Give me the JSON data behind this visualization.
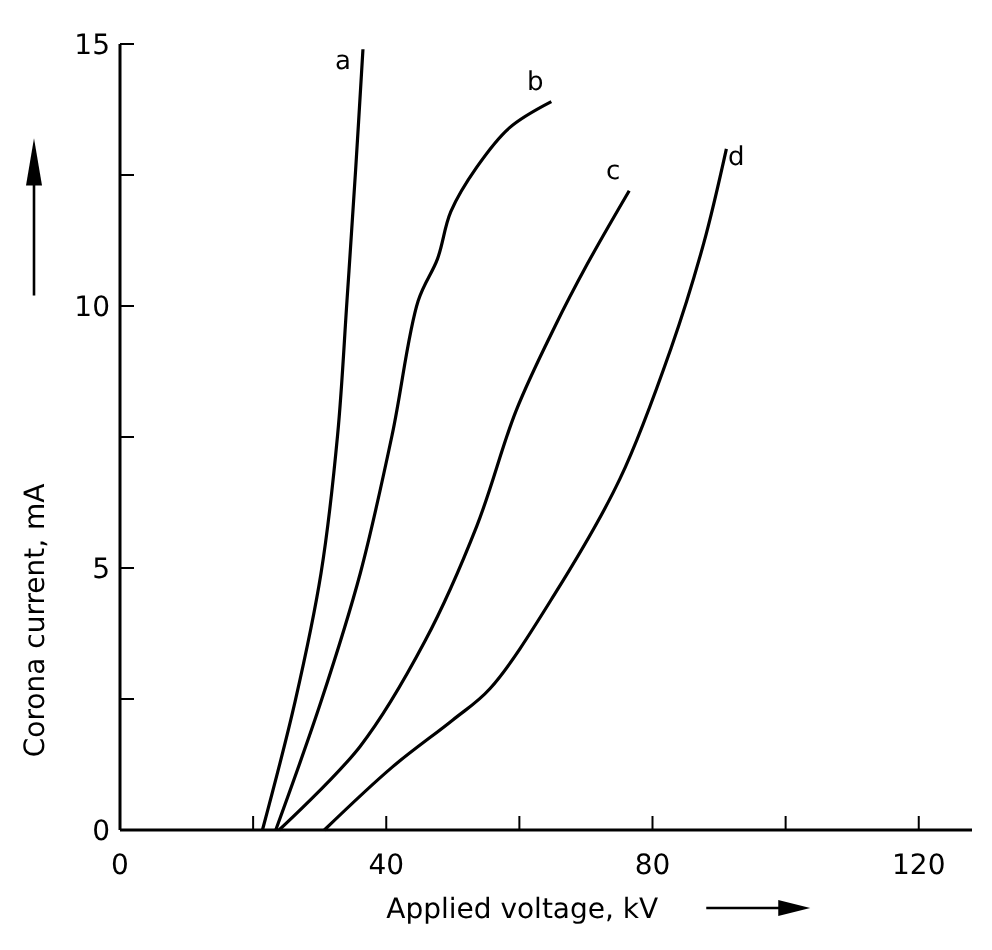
{
  "chart_data": {
    "type": "line",
    "xlabel": "Applied voltage, kV",
    "ylabel": "Corona current, mA",
    "xlim": [
      0,
      128
    ],
    "ylim": [
      0,
      15
    ],
    "xticks": [
      0,
      {
        "value": 20,
        "label": null
      },
      40,
      {
        "value": 60,
        "label": null
      },
      80,
      {
        "value": 100,
        "label": null
      },
      120
    ],
    "yticks": [
      0,
      {
        "value": 2.5,
        "label": null
      },
      5,
      {
        "value": 7.5,
        "label": null
      },
      10,
      {
        "value": 12.5,
        "label": null
      },
      15
    ],
    "grid": false,
    "marker": "none",
    "line_style": "solid",
    "series": [
      {
        "name": "a",
        "color": "#000000",
        "x": [
          21.4,
          26.3,
          30.2,
          32.7,
          34.1,
          35.4,
          36.5
        ],
        "values": [
          0,
          2.45,
          4.9,
          7.55,
          10.1,
          12.6,
          14.9
        ]
      },
      {
        "name": "b",
        "color": "#000000",
        "x": [
          23.4,
          30.2,
          36.1,
          40.9,
          44.8,
          47.7,
          49.7,
          53.6,
          58.5,
          64.8
        ],
        "values": [
          0,
          2.45,
          4.9,
          7.55,
          10.1,
          10.9,
          11.8,
          12.65,
          13.4,
          13.9
        ]
      },
      {
        "name": "c",
        "color": "#000000",
        "x": [
          23.9,
          36.1,
          45.8,
          53.6,
          59.5,
          65.3,
          70.2,
          76.5
        ],
        "values": [
          0,
          1.6,
          3.6,
          5.8,
          8.0,
          9.6,
          10.8,
          12.2
        ]
      },
      {
        "name": "d",
        "color": "#000000",
        "x": [
          30.7,
          40.9,
          50,
          55.6,
          65.3,
          75.1,
          82.8,
          87.7,
          91.1
        ],
        "values": [
          0,
          1.2,
          2.1,
          2.7,
          4.5,
          6.7,
          9.2,
          11.2,
          13.0
        ]
      }
    ]
  }
}
